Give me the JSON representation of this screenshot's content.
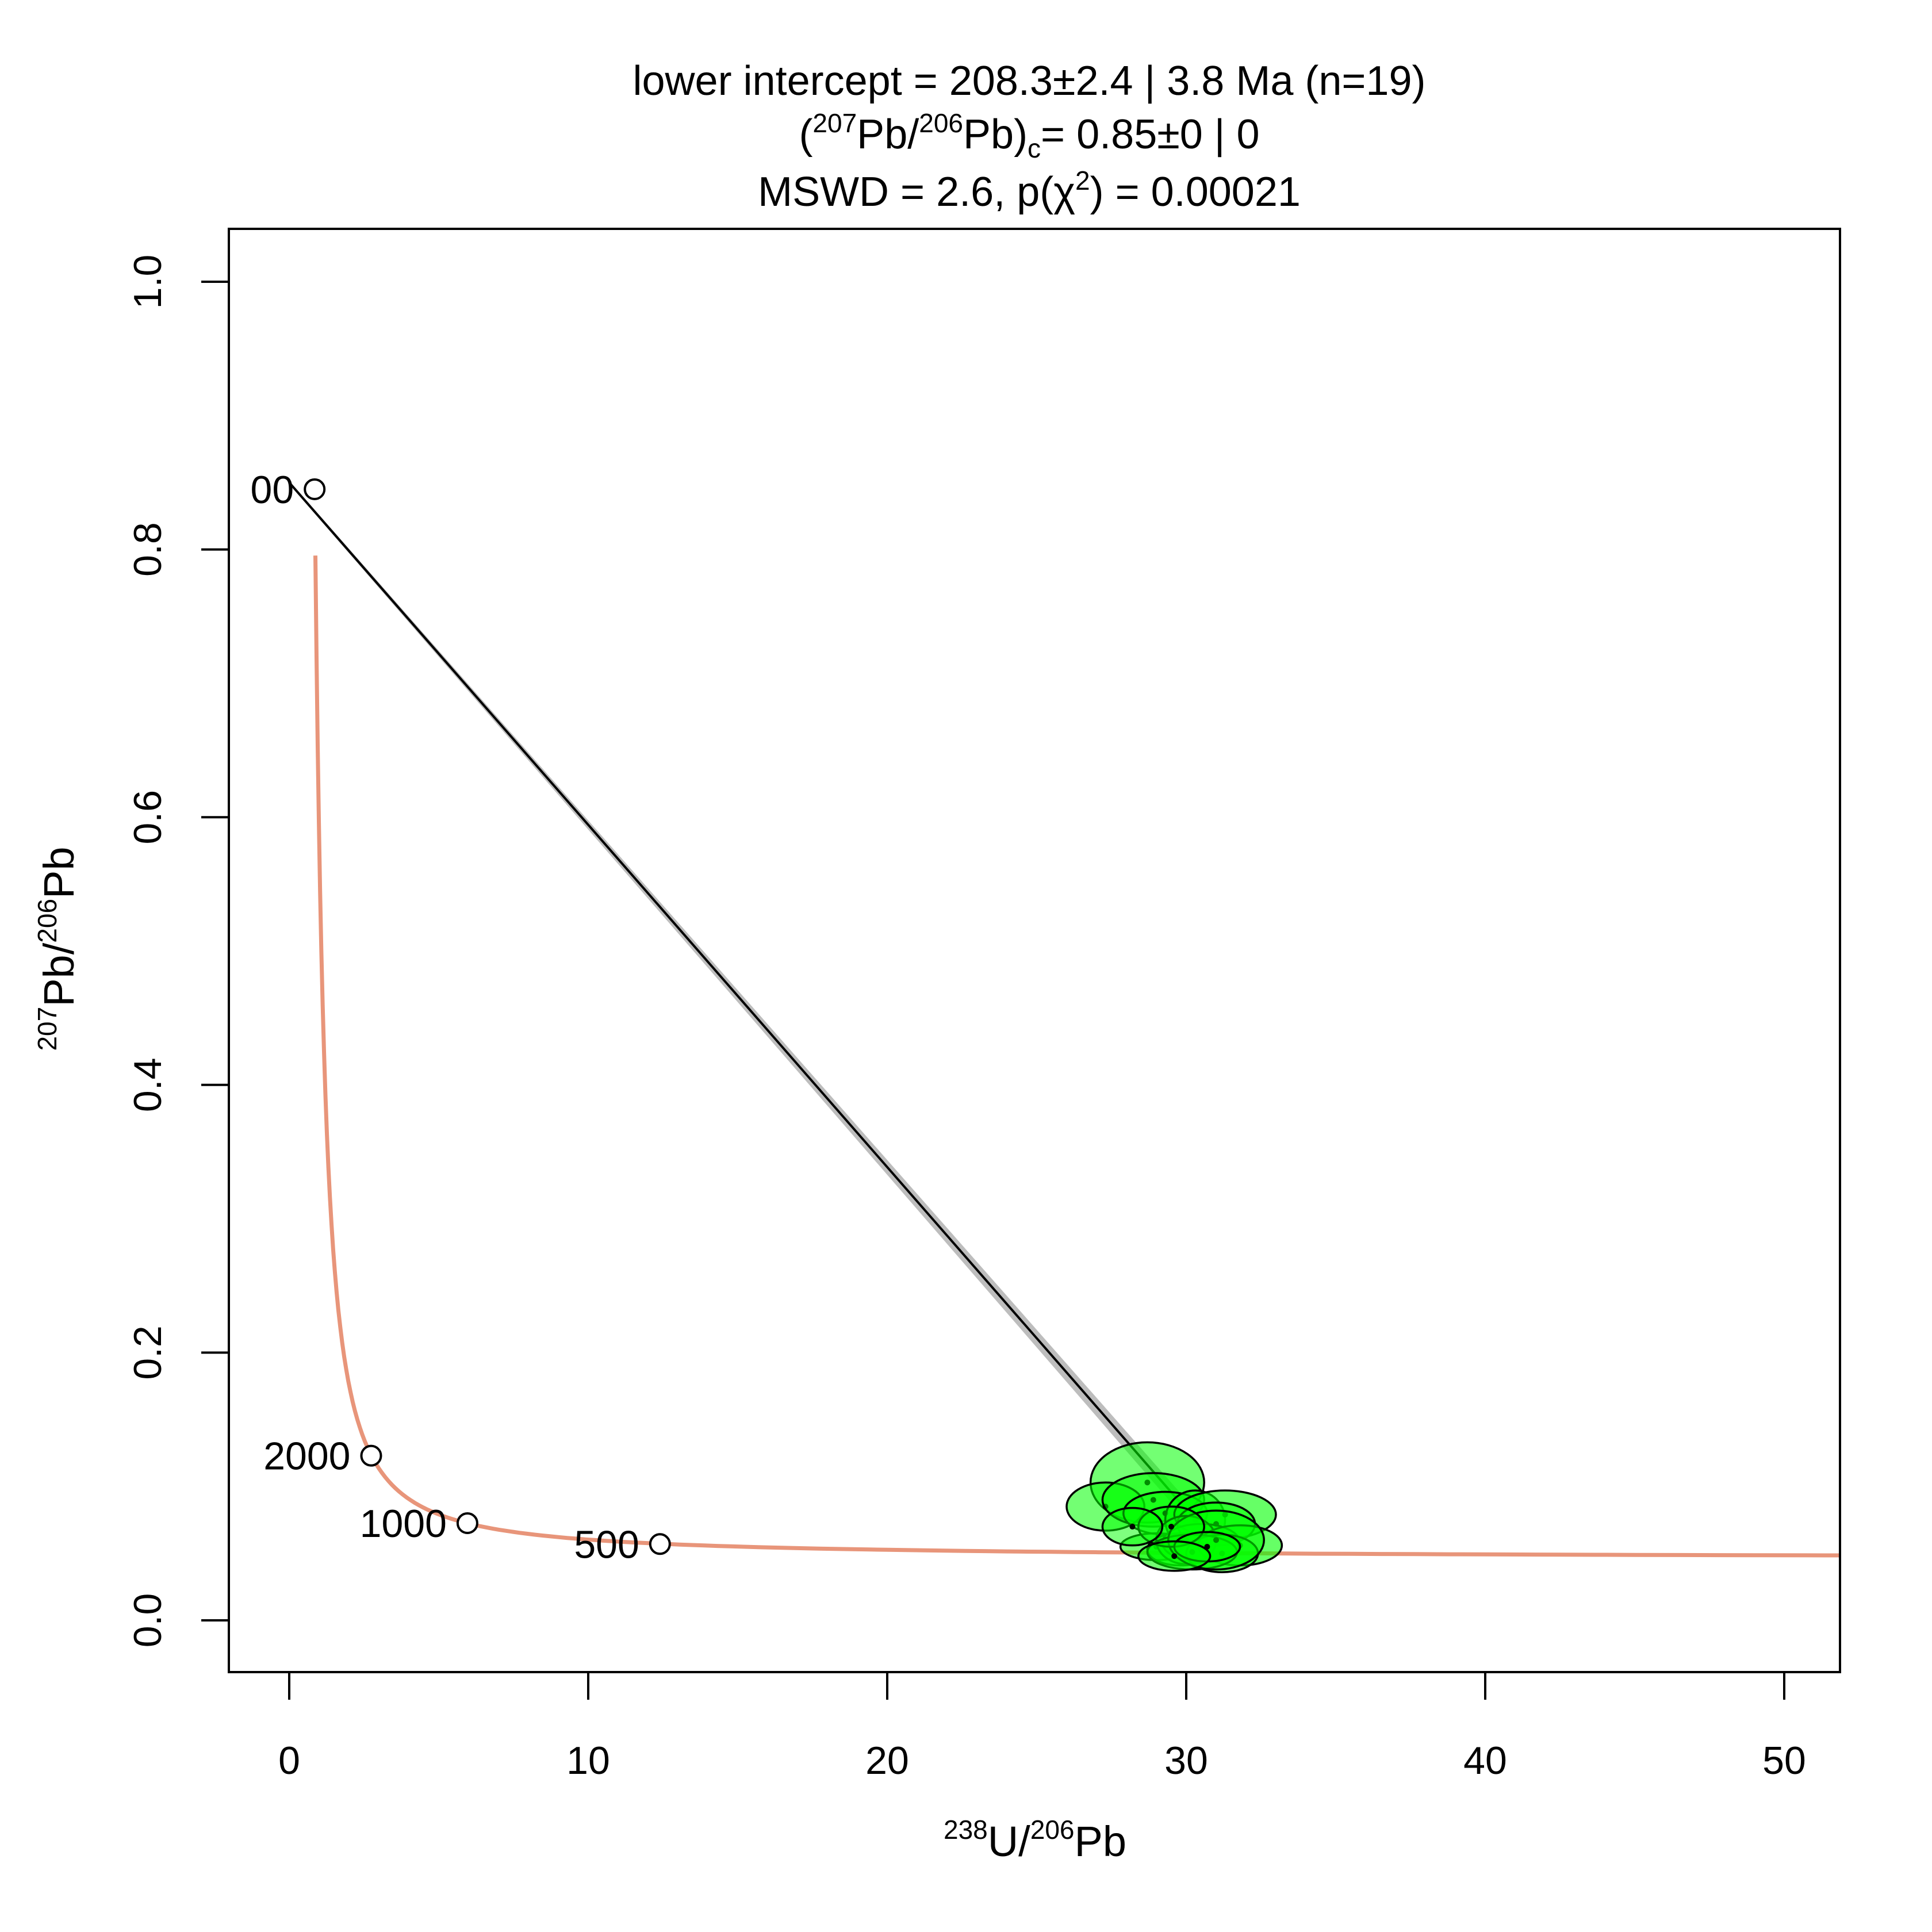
{
  "chart_data": {
    "type": "scatter",
    "title": {
      "line1": "lower intercept = 208.3±2.4 | 3.8 Ma (n=19)",
      "line2_open": "(",
      "line2_sup1": "207",
      "line2_mid": "Pb/",
      "line2_sup2": "206",
      "line2_after": "Pb)",
      "line2_sub": "c",
      "line2_tail": "= 0.85±0 | 0",
      "line3_a": "MSWD = 2.6, p(χ",
      "line3_sup": "2",
      "line3_b": ") = 0.00021"
    },
    "xlabel": {
      "sup1": "238",
      "a": "U/",
      "sup2": "206",
      "b": "Pb"
    },
    "ylabel": {
      "sup1": "207",
      "a": "Pb/",
      "sup2": "206",
      "b": "Pb"
    },
    "xlim": [
      -2,
      52
    ],
    "ylim": [
      -0.04,
      1.04
    ],
    "xticks": [
      0,
      10,
      20,
      30,
      40,
      50
    ],
    "yticks": [
      0.0,
      0.2,
      0.4,
      0.6,
      0.8,
      1.0
    ],
    "ytick_labels": [
      "0.0",
      "0.2",
      "0.4",
      "0.6",
      "0.8",
      "1.0"
    ],
    "concordia_color": "#e8957a",
    "ellipse_fill": "#00ff00",
    "concordia_ages": [
      {
        "label": "500",
        "x": 12.4,
        "y": 0.057
      },
      {
        "label": "1000",
        "x": 5.96,
        "y": 0.0726
      },
      {
        "label": "2000",
        "x": 2.74,
        "y": 0.123
      },
      {
        "label": "00",
        "x": 0.85,
        "y": 0.845
      }
    ],
    "discordia": {
      "x0": 0.0,
      "y0": 0.85,
      "x1": 30.7,
      "y1": 0.065
    },
    "ellipses": [
      {
        "x": 28.7,
        "y": 0.103,
        "rx": 1.9,
        "ry": 0.03,
        "alpha": 0.55
      },
      {
        "x": 27.3,
        "y": 0.085,
        "rx": 1.3,
        "ry": 0.018,
        "alpha": 0.55
      },
      {
        "x": 28.9,
        "y": 0.09,
        "rx": 1.7,
        "ry": 0.02,
        "alpha": 0.55
      },
      {
        "x": 29.3,
        "y": 0.08,
        "rx": 1.4,
        "ry": 0.016,
        "alpha": 0.5
      },
      {
        "x": 30.3,
        "y": 0.075,
        "rx": 1.0,
        "ry": 0.022,
        "alpha": 0.55
      },
      {
        "x": 31.3,
        "y": 0.079,
        "rx": 1.7,
        "ry": 0.018,
        "alpha": 0.6
      },
      {
        "x": 31.0,
        "y": 0.072,
        "rx": 1.3,
        "ry": 0.016,
        "alpha": 0.55
      },
      {
        "x": 29.0,
        "y": 0.055,
        "rx": 1.2,
        "ry": 0.01,
        "alpha": 0.55
      },
      {
        "x": 29.8,
        "y": 0.053,
        "rx": 1.1,
        "ry": 0.012,
        "alpha": 0.5
      },
      {
        "x": 30.5,
        "y": 0.058,
        "rx": 1.3,
        "ry": 0.014,
        "alpha": 0.55
      },
      {
        "x": 30.0,
        "y": 0.06,
        "rx": 1.0,
        "ry": 0.018,
        "alpha": 0.55
      },
      {
        "x": 31.8,
        "y": 0.056,
        "rx": 1.4,
        "ry": 0.015,
        "alpha": 0.6
      },
      {
        "x": 31.2,
        "y": 0.05,
        "rx": 1.2,
        "ry": 0.014,
        "alpha": 0.55
      },
      {
        "x": 30.2,
        "y": 0.051,
        "rx": 1.5,
        "ry": 0.013,
        "alpha": 0.55
      },
      {
        "x": 31.0,
        "y": 0.06,
        "rx": 1.6,
        "ry": 0.022,
        "alpha": 0.6
      },
      {
        "x": 29.5,
        "y": 0.07,
        "rx": 1.1,
        "ry": 0.015,
        "alpha": 0.5
      },
      {
        "x": 30.7,
        "y": 0.055,
        "rx": 1.1,
        "ry": 0.011,
        "alpha": 0.55
      },
      {
        "x": 28.2,
        "y": 0.07,
        "rx": 1.0,
        "ry": 0.014,
        "alpha": 0.5
      },
      {
        "x": 29.6,
        "y": 0.048,
        "rx": 1.2,
        "ry": 0.011,
        "alpha": 0.55
      }
    ]
  }
}
